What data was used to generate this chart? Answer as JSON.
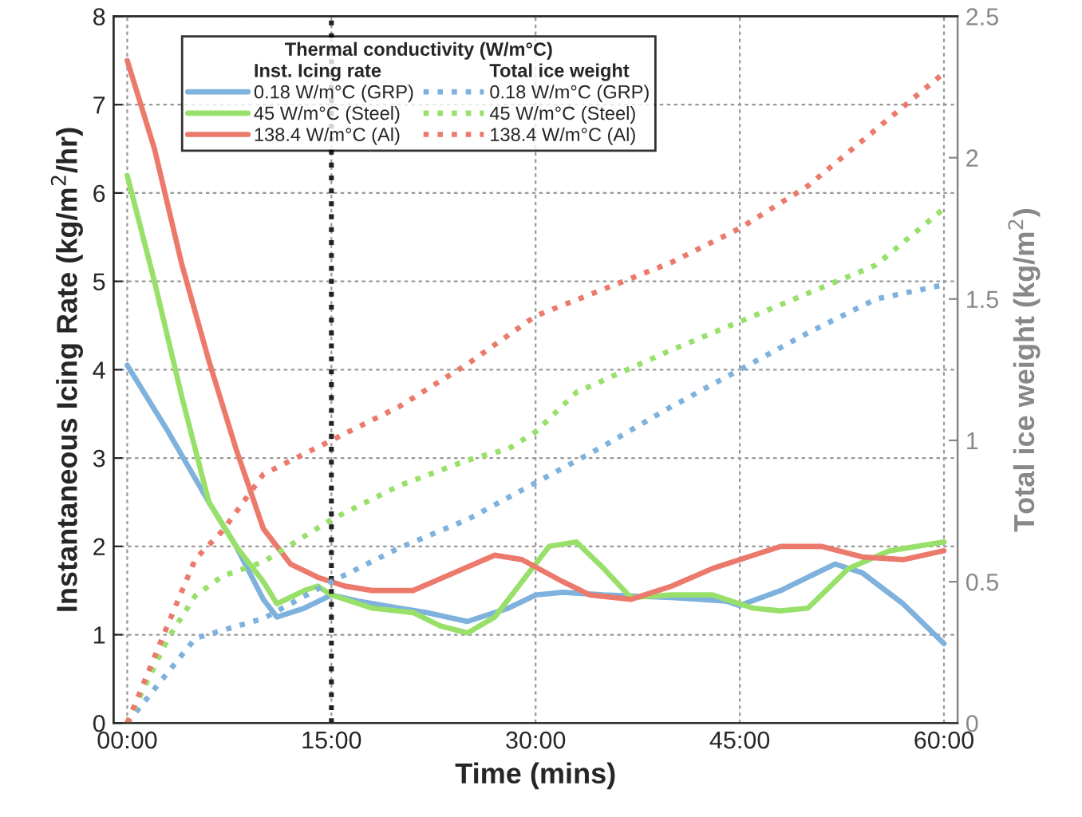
{
  "chart_data": {
    "type": "line",
    "xlabel": "Time (mins)",
    "ylabel": "Instantaneous Icing Rate (kg/m$^{2}$/hr)",
    "y2label": "Total ice weight (kg/m$^{2}$)",
    "legend_title": "Thermal conductivity (W/m°C)",
    "annotations": [
      "Inst. Icing rate",
      "Total ice weight"
    ],
    "xlim": [
      -1,
      61
    ],
    "xticks": [
      {
        "value": 0,
        "label": "00:00"
      },
      {
        "value": 15,
        "label": "15:00"
      },
      {
        "value": 30,
        "label": "30:00"
      },
      {
        "value": 45,
        "label": "45:00"
      },
      {
        "value": 60,
        "label": "60:00"
      }
    ],
    "ylim": [
      0,
      8
    ],
    "yticks": [
      0,
      1,
      2,
      3,
      4,
      5,
      6,
      7,
      8
    ],
    "y2lim": [
      0,
      2.5
    ],
    "y2ticks": [
      0,
      0.5,
      1,
      1.5,
      2,
      2.5
    ],
    "grid": true,
    "legend": "top",
    "ref_lines": [
      {
        "axis": "x",
        "value": 15,
        "color": "#222222",
        "line_style": "dotted"
      }
    ],
    "series": [
      {
        "name": "0.18 W/m°C (GRP)",
        "color": "#7eb2dd",
        "line_style": "solid",
        "x": [
          0,
          3,
          6,
          8,
          10,
          11,
          13,
          15,
          17,
          20,
          22,
          25,
          28,
          30,
          32,
          35,
          40,
          44,
          45,
          48,
          52,
          54,
          57,
          60
        ],
        "values": [
          4.05,
          3.3,
          2.5,
          2.0,
          1.4,
          1.2,
          1.3,
          1.45,
          1.38,
          1.3,
          1.25,
          1.15,
          1.3,
          1.45,
          1.48,
          1.45,
          1.42,
          1.38,
          1.33,
          1.5,
          1.8,
          1.7,
          1.35,
          0.9
        ]
      },
      {
        "name": "45 W/m°C (Steel)",
        "color": "#98e06a",
        "line_style": "solid",
        "x": [
          0,
          2,
          4,
          6,
          8,
          10,
          11,
          13,
          14,
          15,
          18,
          21,
          23,
          25,
          27,
          29,
          31,
          33,
          35,
          37,
          40,
          43,
          46,
          48,
          50,
          53,
          56,
          60
        ],
        "values": [
          6.2,
          5.0,
          3.7,
          2.5,
          2.0,
          1.6,
          1.35,
          1.5,
          1.55,
          1.45,
          1.3,
          1.25,
          1.1,
          1.02,
          1.2,
          1.6,
          2.0,
          2.05,
          1.75,
          1.42,
          1.45,
          1.45,
          1.3,
          1.27,
          1.3,
          1.75,
          1.95,
          2.05
        ]
      },
      {
        "name": "138.4 W/m°C (Al)",
        "color": "#ec7a6c",
        "line_style": "solid",
        "x": [
          0,
          2,
          4,
          6,
          8,
          10,
          12,
          14,
          16,
          18,
          21,
          24,
          27,
          29,
          32,
          34,
          37,
          40,
          43,
          46,
          48,
          51,
          54,
          57,
          60
        ],
        "values": [
          7.5,
          6.5,
          5.2,
          4.1,
          3.1,
          2.2,
          1.8,
          1.65,
          1.55,
          1.5,
          1.5,
          1.7,
          1.9,
          1.85,
          1.6,
          1.45,
          1.4,
          1.55,
          1.75,
          1.9,
          2.0,
          2.0,
          1.88,
          1.85,
          1.95
        ]
      },
      {
        "name": "0.18 W/m°C (GRP)",
        "color": "#7eb2dd",
        "line_style": "dotted",
        "axis": "y2",
        "x": [
          0,
          3,
          5,
          10,
          15,
          20,
          25,
          30,
          35,
          40,
          45,
          50,
          55,
          60
        ],
        "values": [
          0,
          0.18,
          0.3,
          0.37,
          0.5,
          0.62,
          0.72,
          0.85,
          0.98,
          1.12,
          1.25,
          1.38,
          1.5,
          1.55
        ]
      },
      {
        "name": "45 W/m°C (Steel)",
        "color": "#98e06a",
        "line_style": "dotted",
        "axis": "y2",
        "x": [
          0,
          3,
          5,
          7,
          10,
          15,
          20,
          25,
          28,
          30,
          33,
          40,
          45,
          50,
          55,
          60
        ],
        "values": [
          0,
          0.3,
          0.45,
          0.52,
          0.57,
          0.72,
          0.84,
          0.93,
          0.97,
          1.03,
          1.17,
          1.32,
          1.42,
          1.52,
          1.62,
          1.82
        ]
      },
      {
        "name": "138.4 W/m°C (Al)",
        "color": "#ec7a6c",
        "line_style": "dotted",
        "axis": "y2",
        "x": [
          0,
          3,
          5,
          7,
          10,
          15,
          20,
          25,
          30,
          40,
          45,
          50,
          55,
          60
        ],
        "values": [
          0,
          0.35,
          0.58,
          0.68,
          0.88,
          1.0,
          1.12,
          1.27,
          1.44,
          1.63,
          1.75,
          1.9,
          2.1,
          2.3
        ]
      }
    ]
  }
}
